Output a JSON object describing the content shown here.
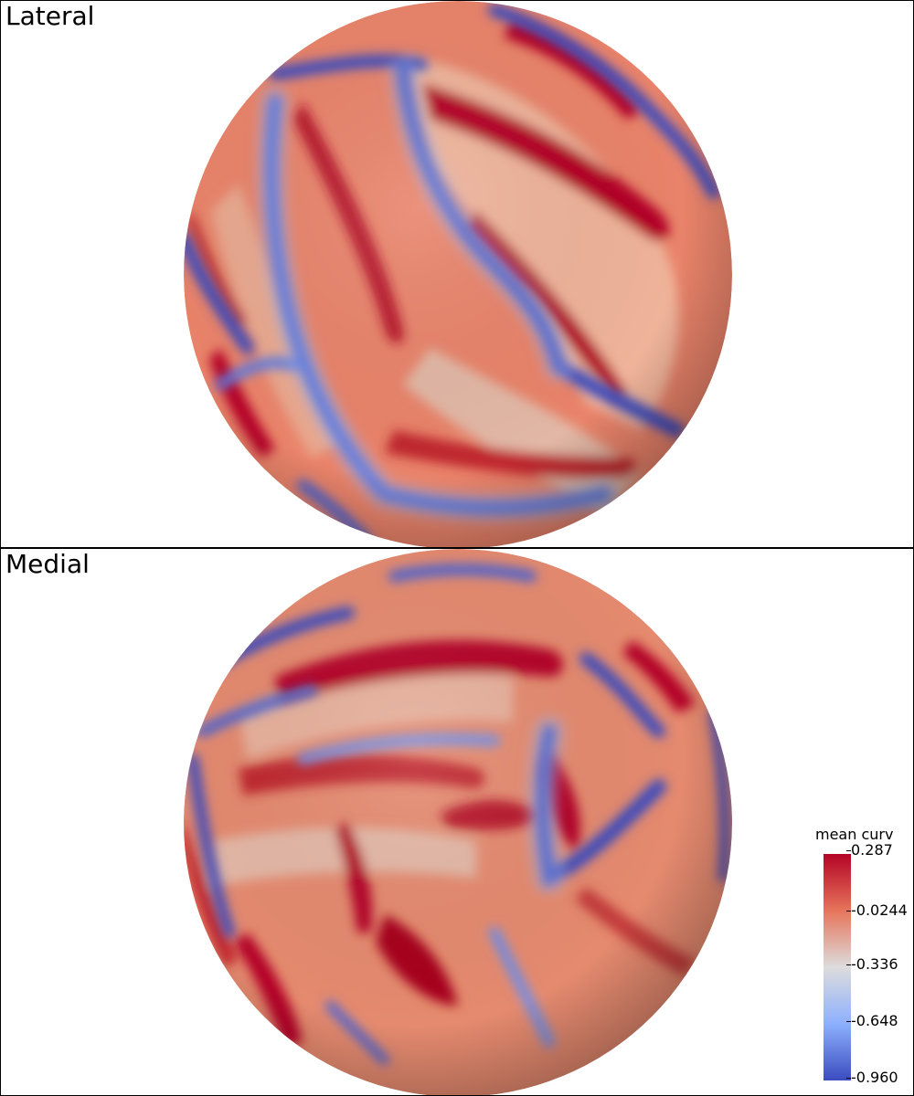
{
  "views": [
    {
      "id": "lateral",
      "label": "Lateral"
    },
    {
      "id": "medial",
      "label": "Medial"
    }
  ],
  "colorbar": {
    "title": "mean curv",
    "ticks": [
      "0.287",
      "-0.0244",
      "-0.336",
      "-0.648",
      "-0.960"
    ],
    "min": -0.96,
    "max": 0.287,
    "colors": {
      "high": "#b40426",
      "mid_high": "#e7745b",
      "mid": "#dddcdc",
      "mid_low": "#8db0fe",
      "low": "#3b4cc0"
    }
  }
}
